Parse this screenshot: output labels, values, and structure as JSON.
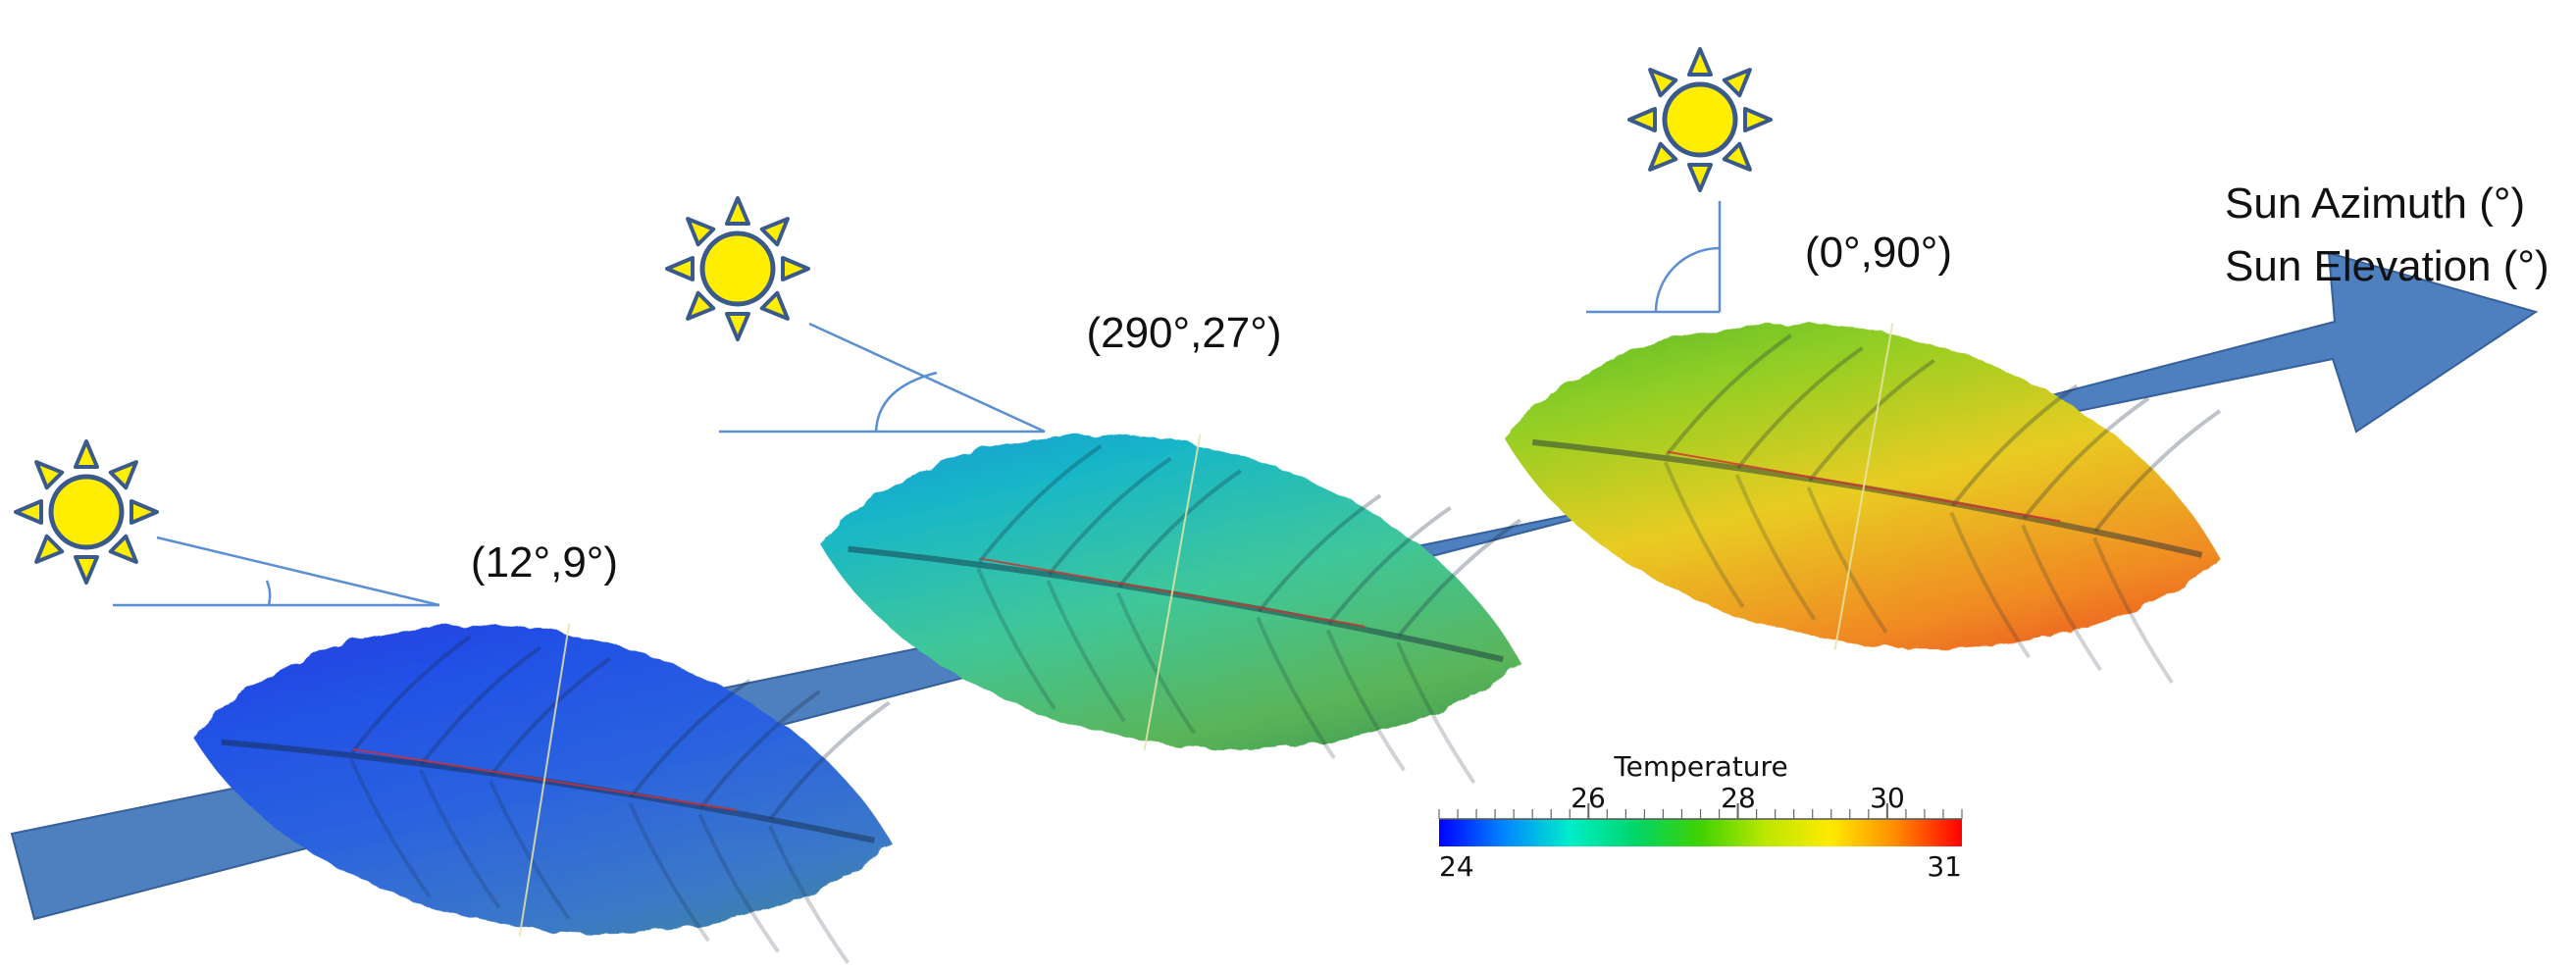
{
  "axis_title": {
    "line1": "Sun Azimuth (°)",
    "line2": "Sun Elevation (°)"
  },
  "conditions": [
    {
      "label": "(12°,9°)",
      "azimuth_deg": 12,
      "elevation_deg": 9,
      "leaf_palette": [
        "#1c35d8",
        "#2250e6",
        "#2a62df",
        "#3b78c8",
        "#3e8f83"
      ]
    },
    {
      "label": "(290°,27°)",
      "azimuth_deg": 290,
      "elevation_deg": 27,
      "leaf_palette": [
        "#1a8ad8",
        "#19b7c7",
        "#3fc79a",
        "#5ab55a",
        "#2d8a4a"
      ]
    },
    {
      "label": "(0°,90°)",
      "azimuth_deg": 0,
      "elevation_deg": 90,
      "leaf_palette": [
        "#3fae2f",
        "#8fce25",
        "#e8cc20",
        "#f08a22",
        "#e8301a"
      ]
    }
  ],
  "colorbar": {
    "title": "Temperature",
    "min_label": "24",
    "max_label": "31",
    "tick_labels": [
      "26",
      "28",
      "30"
    ],
    "min": 24,
    "max": 31,
    "ticks": [
      26,
      28,
      30
    ],
    "minor_step": 0.25,
    "colormap": [
      "#0000ff",
      "#0086ff",
      "#00eec8",
      "#00d56a",
      "#3fd200",
      "#bde800",
      "#ffe900",
      "#ff8a00",
      "#ff0000"
    ]
  },
  "colors": {
    "arrow": "#4e7fbf",
    "arrow_outline": "#36609a",
    "sun_fill": "#ffee00",
    "sun_outline": "#3b5a8c",
    "angle_line": "#5b8ed2"
  }
}
